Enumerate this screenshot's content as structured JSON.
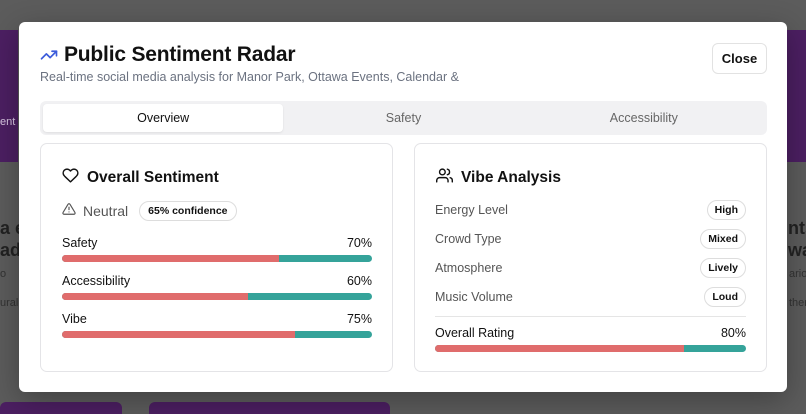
{
  "background": {
    "left_fragment_1": "a e",
    "left_fragment_2": "ad",
    "left_small_1": "ent",
    "left_small_2": "o",
    "left_small_3": "ural",
    "right_fragment_1": "nts",
    "right_fragment_2": "wa",
    "right_small_1": "ario",
    "right_small_2": "ther"
  },
  "modal": {
    "title": "Public Sentiment Radar",
    "subtitle": "Real-time social media analysis for Manor Park, Ottawa Events, Calendar &",
    "close_label": "Close",
    "title_icon": "trending-up-icon"
  },
  "tabs": [
    {
      "label": "Overview",
      "active": true
    },
    {
      "label": "Safety",
      "active": false
    },
    {
      "label": "Accessibility",
      "active": false
    }
  ],
  "sentiment": {
    "title": "Overall Sentiment",
    "icon": "heart-icon",
    "status_icon": "warning-icon",
    "status": "Neutral",
    "confidence": "65% confidence",
    "metrics": [
      {
        "label": "Safety",
        "value_text": "70%",
        "value": 70
      },
      {
        "label": "Accessibility",
        "value_text": "60%",
        "value": 60
      },
      {
        "label": "Vibe",
        "value_text": "75%",
        "value": 75
      }
    ]
  },
  "vibe": {
    "title": "Vibe Analysis",
    "icon": "users-icon",
    "rows": [
      {
        "label": "Energy Level",
        "badge": "High"
      },
      {
        "label": "Crowd Type",
        "badge": "Mixed"
      },
      {
        "label": "Atmosphere",
        "badge": "Lively"
      },
      {
        "label": "Music Volume",
        "badge": "Loud"
      }
    ],
    "overall_label": "Overall Rating",
    "overall_text": "80%",
    "overall_value": 80
  },
  "colors": {
    "bar_primary": "#e06c6c",
    "bar_track": "#35a39a",
    "accent_icon": "#3b5bdb"
  }
}
